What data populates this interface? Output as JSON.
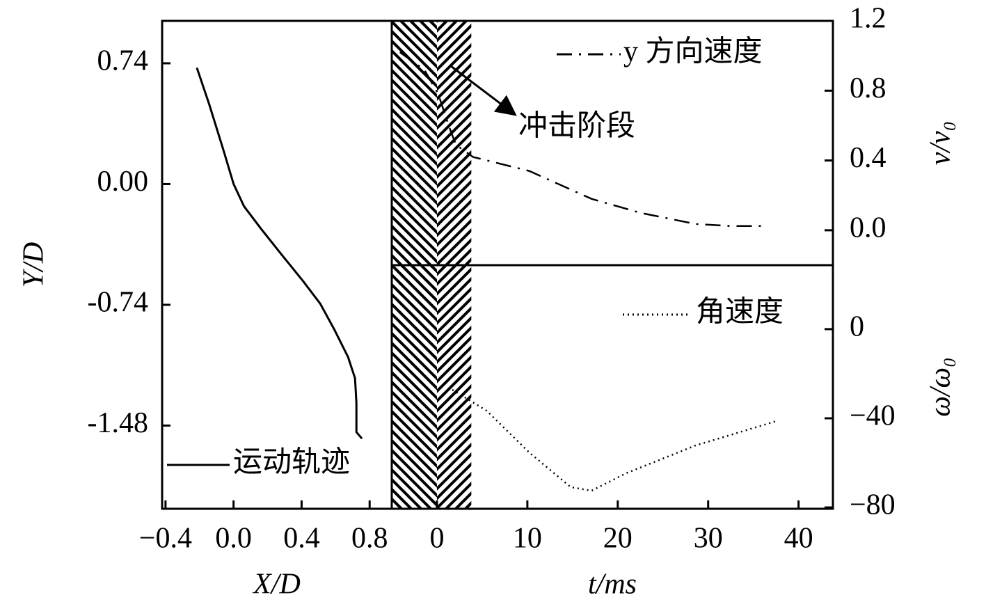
{
  "chart_data": [
    {
      "type": "line",
      "xlabel": "X/D",
      "ylabel": "Y/D",
      "xlim": [
        -0.42,
        0.93
      ],
      "xticks": [
        {
          "value": -0.4,
          "label": "−0.4"
        },
        {
          "value": 0,
          "label": "0.0"
        },
        0.4,
        0.8
      ],
      "ylim": [
        -1.99,
        1.0
      ],
      "yticks": [
        0.74,
        {
          "value": 0,
          "label": "0.00"
        },
        -0.74,
        -1.48
      ],
      "legend": "bottom-left",
      "series": [
        {
          "name": "运动轨迹",
          "color": "#000000",
          "line_style": "solid",
          "x": [
            -0.216,
            -0.143,
            -0.061,
            0,
            0.061,
            0.163,
            0.286,
            0.408,
            0.51,
            0.592,
            0.673,
            0.714,
            0.722,
            0.722,
            0.755
          ],
          "values": [
            0.713,
            0.488,
            0.212,
            0,
            -0.136,
            -0.276,
            -0.437,
            -0.594,
            -0.734,
            -0.891,
            -1.06,
            -1.19,
            -1.34,
            -1.52,
            -1.56
          ]
        }
      ]
    },
    {
      "type": "line",
      "ylabel": "v/v₀",
      "xlim": [
        -5,
        43.8
      ],
      "ylim": [
        -0.2,
        1.2
      ],
      "yticks": [
        {
          "value": 0,
          "label": "0.0"
        },
        0.4,
        0.8,
        1.2
      ],
      "legend": "top-right",
      "annotation": {
        "text": "冲击阶段",
        "region": [
          -5,
          3.8
        ]
      },
      "series": [
        {
          "name": "y 方向速度",
          "color": "#000000",
          "line_style": "dashdot",
          "x": [
            -4.1,
            -1.4,
            0.15,
            1.3,
            2.1,
            4,
            10.2,
            17.1,
            22.5,
            28.6,
            32.5,
            36.3
          ],
          "values": [
            1.02,
            0.92,
            0.78,
            0.6,
            0.49,
            0.42,
            0.34,
            0.18,
            0.1,
            0.036,
            0.024,
            0.024
          ]
        }
      ]
    },
    {
      "type": "line",
      "xlabel": "t/ms",
      "ylabel": "ω/ω₀",
      "xlim": [
        -5,
        43.8
      ],
      "xticks": [
        0,
        10,
        20,
        30,
        40
      ],
      "ylim": [
        -80.6,
        28.7
      ],
      "yticks": [
        0,
        {
          "value": -40,
          "label": "−40"
        },
        {
          "value": -80,
          "label": "−80"
        }
      ],
      "legend": "top-right",
      "series": [
        {
          "name": "角速度",
          "color": "#000000",
          "line_style": "dot",
          "x": [
            1.7,
            5.5,
            10.2,
            14.8,
            17.1,
            20.9,
            28.6,
            37.5
          ],
          "values": [
            -27.2,
            -36.6,
            -55.3,
            -70.9,
            -72.5,
            -64.7,
            -52.2,
            -41.3
          ]
        }
      ]
    }
  ]
}
